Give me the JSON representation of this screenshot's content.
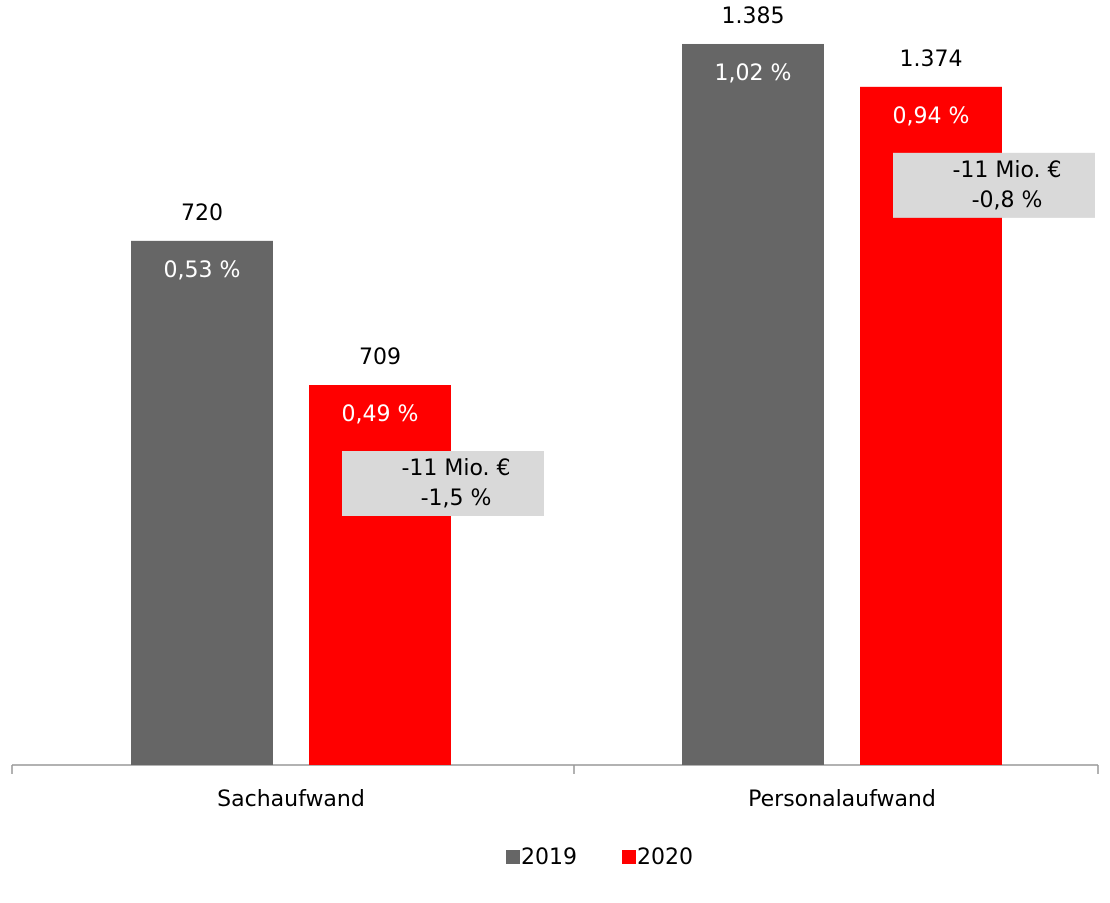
{
  "chart_data": [
    {
      "type": "bar",
      "categories": [
        "Sachaufwand"
      ],
      "series": [
        {
          "name": "2019",
          "color": "#666666",
          "values": [
            720
          ],
          "inner_labels": [
            "0,53 %"
          ]
        },
        {
          "color": "#ff0000",
          "values": [
            709
          ],
          "inner_labels": [
            "0,49 %"
          ],
          "annotation": [
            "-11 Mio. €",
            "-1,5 %"
          ]
        }
      ],
      "ylim": [
        680,
        738
      ]
    },
    {
      "type": "bar",
      "categories": [
        "Personalaufwand"
      ],
      "series": [
        {
          "color": "#666666",
          "values": [
            1385
          ],
          "value_labels": [
            "1.385"
          ],
          "inner_labels": [
            "1,02 %"
          ]
        },
        {
          "name": "2020",
          "color": "#ff0000",
          "values": [
            1374
          ],
          "value_labels": [
            "1.374"
          ],
          "inner_labels": [
            "0,94 %"
          ],
          "annotation": [
            "-11 Mio. €",
            "-0,8 %"
          ]
        }
      ],
      "ylim": [
        1200,
        1395
      ]
    }
  ]
}
